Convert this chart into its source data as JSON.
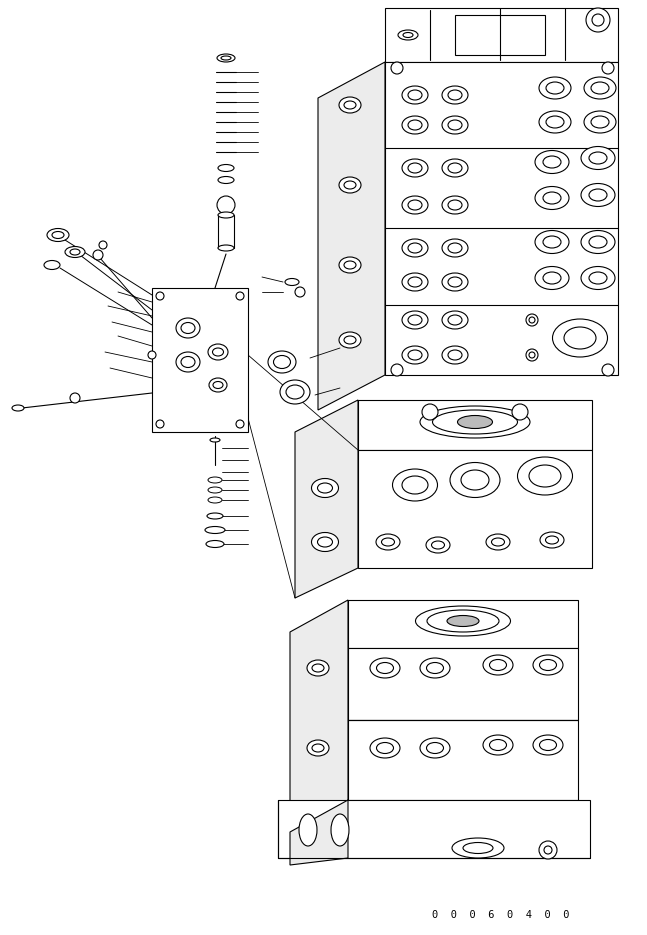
{
  "background_color": "#ffffff",
  "line_color": "#000000",
  "line_width": 0.8,
  "part_number": "0  0  0  6  0  4  0  0",
  "fig_width": 6.47,
  "fig_height": 9.35,
  "dpi": 100
}
